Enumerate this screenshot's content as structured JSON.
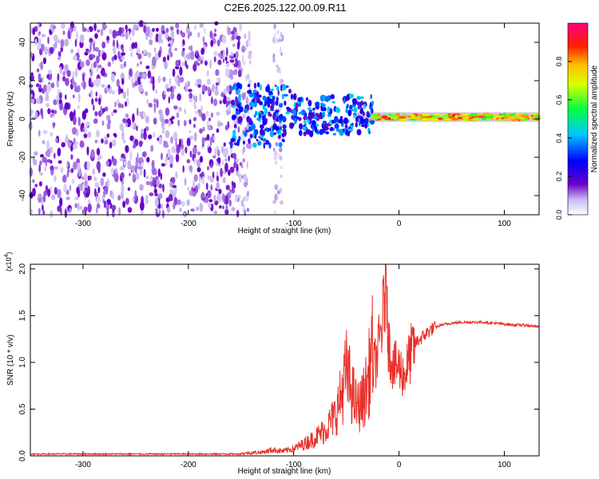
{
  "title": "C2E6.2025.122.00.09.R11",
  "chart_data": [
    {
      "type": "heatmap",
      "xlabel": "Height of straight line (km)",
      "ylabel": "Frequency (Hz)",
      "xlim": [
        -350,
        133
      ],
      "ylim": [
        -50,
        50
      ],
      "xticks": [
        -300,
        -200,
        -100,
        0,
        100
      ],
      "xtick_labels": [
        "-300",
        "-200",
        "-100",
        "0",
        "100"
      ],
      "yticks": [
        -40,
        -20,
        0,
        20,
        40
      ],
      "ytick_labels": [
        "-40",
        "-20",
        "0",
        "20",
        "40"
      ],
      "colorbar": {
        "label": "Normalized spectral amplitude",
        "range": [
          0,
          1
        ],
        "ticks": [
          0.0,
          0.2,
          0.4,
          0.6,
          0.8
        ],
        "tick_labels": [
          "0.0",
          "0.2",
          "0.4",
          "0.6",
          "0.8"
        ],
        "colormap": [
          "#ffffff",
          "#6a00c8",
          "#0000ff",
          "#00c8ff",
          "#00ff00",
          "#ffff00",
          "#ff8000",
          "#ff0000",
          "#ff00a0"
        ]
      },
      "regions": [
        {
          "x": [
            -350,
            -150
          ],
          "f": [
            -50,
            50
          ],
          "amplitude": 0.15,
          "pattern": "broadband noise"
        },
        {
          "x": [
            -150,
            -105
          ],
          "f": [
            -50,
            50
          ],
          "amplitude": 0.05,
          "pattern": "sparse noise"
        },
        {
          "x": [
            -160,
            -100
          ],
          "f": [
            -25,
            18
          ],
          "amplitude": 0.3,
          "pattern": "scattered"
        },
        {
          "x": [
            -110,
            -25
          ],
          "f": [
            -15,
            12
          ],
          "amplitude": 0.35,
          "pattern": "scattered"
        },
        {
          "x": [
            -25,
            133
          ],
          "f": [
            -1,
            3
          ],
          "amplitude": 0.85,
          "pattern": "narrow band"
        }
      ],
      "grid": false,
      "grid_y": [
        0,
        -100,
        -200,
        -300
      ]
    },
    {
      "type": "line",
      "xlabel": "Height of straight line (km)",
      "ylabel": "SNR (10 * v/v)",
      "y_multiplier": "(x10^4)",
      "xlim": [
        -350,
        133
      ],
      "ylim": [
        0,
        2.05
      ],
      "xticks": [
        -300,
        -200,
        -100,
        0,
        100
      ],
      "xtick_labels": [
        "-300",
        "-200",
        "-100",
        "0",
        "100"
      ],
      "yticks": [
        0.0,
        0.5,
        1.0,
        1.5,
        2.0
      ],
      "ytick_labels": [
        "0.0",
        "0.5",
        "1.0",
        "1.5",
        "2.0"
      ],
      "color": "#e8302a",
      "series": [
        {
          "x": [
            -350,
            -300,
            -250,
            -200,
            -150,
            -130,
            -120,
            -110,
            -100,
            -90,
            -80,
            -70,
            -60,
            -55,
            -50,
            -45,
            -40,
            -35,
            -30,
            -25,
            -20,
            -15,
            -12,
            -10,
            -5,
            0,
            5,
            10,
            15,
            20,
            30,
            40,
            50,
            60,
            70,
            80,
            90,
            100,
            110,
            120,
            125,
            133
          ],
          "y": [
            0.02,
            0.02,
            0.02,
            0.02,
            0.02,
            0.03,
            0.05,
            0.04,
            0.06,
            0.1,
            0.15,
            0.22,
            0.35,
            0.5,
            0.7,
            0.55,
            0.4,
            0.45,
            0.6,
            0.9,
            1.1,
            1.5,
            2.05,
            1.2,
            0.95,
            0.95,
            0.85,
            1.05,
            1.2,
            1.25,
            1.35,
            1.4,
            1.42,
            1.43,
            1.43,
            1.43,
            1.42,
            1.41,
            1.4,
            1.4,
            1.39,
            1.38
          ]
        }
      ],
      "grid": false
    }
  ]
}
